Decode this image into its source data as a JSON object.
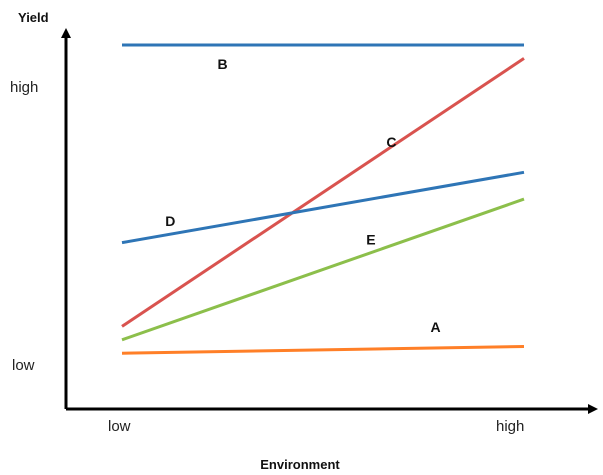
{
  "chart_data": {
    "type": "line",
    "title": "",
    "xlabel": "Environment",
    "ylabel": "Yield",
    "x_ticks": [
      "low",
      "high"
    ],
    "y_ticks": [
      "low",
      "high"
    ],
    "grid": false,
    "legend": "none",
    "series": [
      {
        "name": "A",
        "color": "#ff7f27",
        "values": [
          0.08,
          0.1
        ]
      },
      {
        "name": "B",
        "color": "#2e75b6",
        "values": [
          1.0,
          1.0
        ]
      },
      {
        "name": "C",
        "color": "#d9534f",
        "values": [
          0.16,
          0.96
        ]
      },
      {
        "name": "D",
        "color": "#2e75b6",
        "values": [
          0.41,
          0.62
        ]
      },
      {
        "name": "E",
        "color": "#8cbf4b",
        "values": [
          0.12,
          0.54
        ]
      }
    ]
  }
}
